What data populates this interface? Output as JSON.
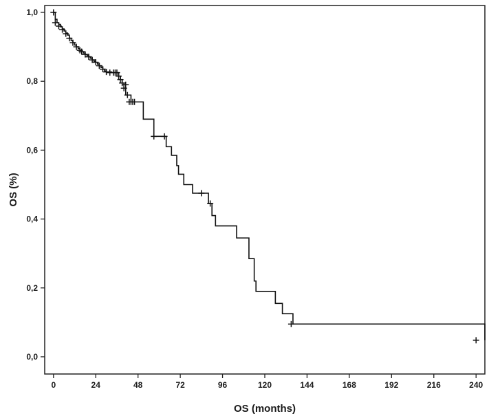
{
  "chart_data": {
    "type": "line",
    "subtype": "kaplan-meier-step",
    "title": "",
    "xlabel": "OS (months)",
    "ylabel": "OS (%)",
    "xlim": [
      -5,
      245
    ],
    "ylim": [
      -0.05,
      1.02
    ],
    "x_ticks": [
      0,
      24,
      48,
      72,
      96,
      120,
      144,
      168,
      192,
      216,
      240
    ],
    "x_tick_labels": [
      "0",
      "24",
      "48",
      "72",
      "96",
      "120",
      "144",
      "168",
      "192",
      "216",
      "240"
    ],
    "y_ticks": [
      0.0,
      0.2,
      0.4,
      0.6,
      0.8,
      1.0
    ],
    "y_tick_labels": [
      "0,0",
      "0,2",
      "0,4",
      "0,6",
      "0,8",
      "1,0"
    ],
    "grid": false,
    "legend": "none",
    "line_color": "#111111",
    "series": [
      {
        "x": [
          0,
          1,
          2,
          3,
          4,
          5,
          6,
          7,
          8,
          9,
          10,
          11,
          12,
          13,
          14,
          15,
          16,
          17,
          18,
          19,
          20,
          21,
          22,
          23,
          24,
          25,
          26,
          27,
          28,
          29,
          30,
          31,
          33,
          34,
          35,
          36,
          37,
          38,
          39,
          40,
          41,
          44,
          47,
          51,
          57,
          61,
          64,
          67,
          70,
          71,
          74,
          79,
          84,
          87,
          88,
          90,
          92,
          104,
          111,
          112,
          114,
          115,
          119,
          126,
          130,
          136,
          245
        ],
        "y": [
          1.0,
          0.98,
          0.97,
          0.965,
          0.958,
          0.952,
          0.946,
          0.94,
          0.934,
          0.925,
          0.918,
          0.912,
          0.905,
          0.9,
          0.895,
          0.89,
          0.886,
          0.882,
          0.878,
          0.875,
          0.871,
          0.867,
          0.862,
          0.858,
          0.855,
          0.85,
          0.845,
          0.84,
          0.835,
          0.83,
          0.827,
          0.827,
          0.825,
          0.825,
          0.825,
          0.825,
          0.815,
          0.805,
          0.795,
          0.78,
          0.76,
          0.74,
          0.74,
          0.69,
          0.64,
          0.64,
          0.61,
          0.585,
          0.555,
          0.53,
          0.5,
          0.475,
          0.475,
          0.475,
          0.445,
          0.41,
          0.38,
          0.345,
          0.285,
          0.285,
          0.22,
          0.19,
          0.19,
          0.155,
          0.125,
          0.095,
          0.048
        ]
      }
    ],
    "censored": {
      "x": [
        0,
        1,
        3,
        5,
        7,
        9,
        11,
        13,
        15,
        16,
        18,
        20,
        22,
        24,
        26,
        28,
        30,
        32,
        34,
        35,
        36,
        37,
        38,
        39,
        40,
        41,
        42,
        43,
        44,
        45,
        46,
        57,
        63,
        84,
        89,
        135,
        240
      ],
      "y": [
        1.0,
        0.97,
        0.96,
        0.95,
        0.938,
        0.925,
        0.912,
        0.9,
        0.89,
        0.886,
        0.878,
        0.871,
        0.862,
        0.855,
        0.845,
        0.835,
        0.827,
        0.825,
        0.825,
        0.825,
        0.825,
        0.815,
        0.805,
        0.795,
        0.78,
        0.79,
        0.76,
        0.74,
        0.74,
        0.74,
        0.74,
        0.64,
        0.64,
        0.475,
        0.445,
        0.095,
        0.048
      ]
    }
  }
}
